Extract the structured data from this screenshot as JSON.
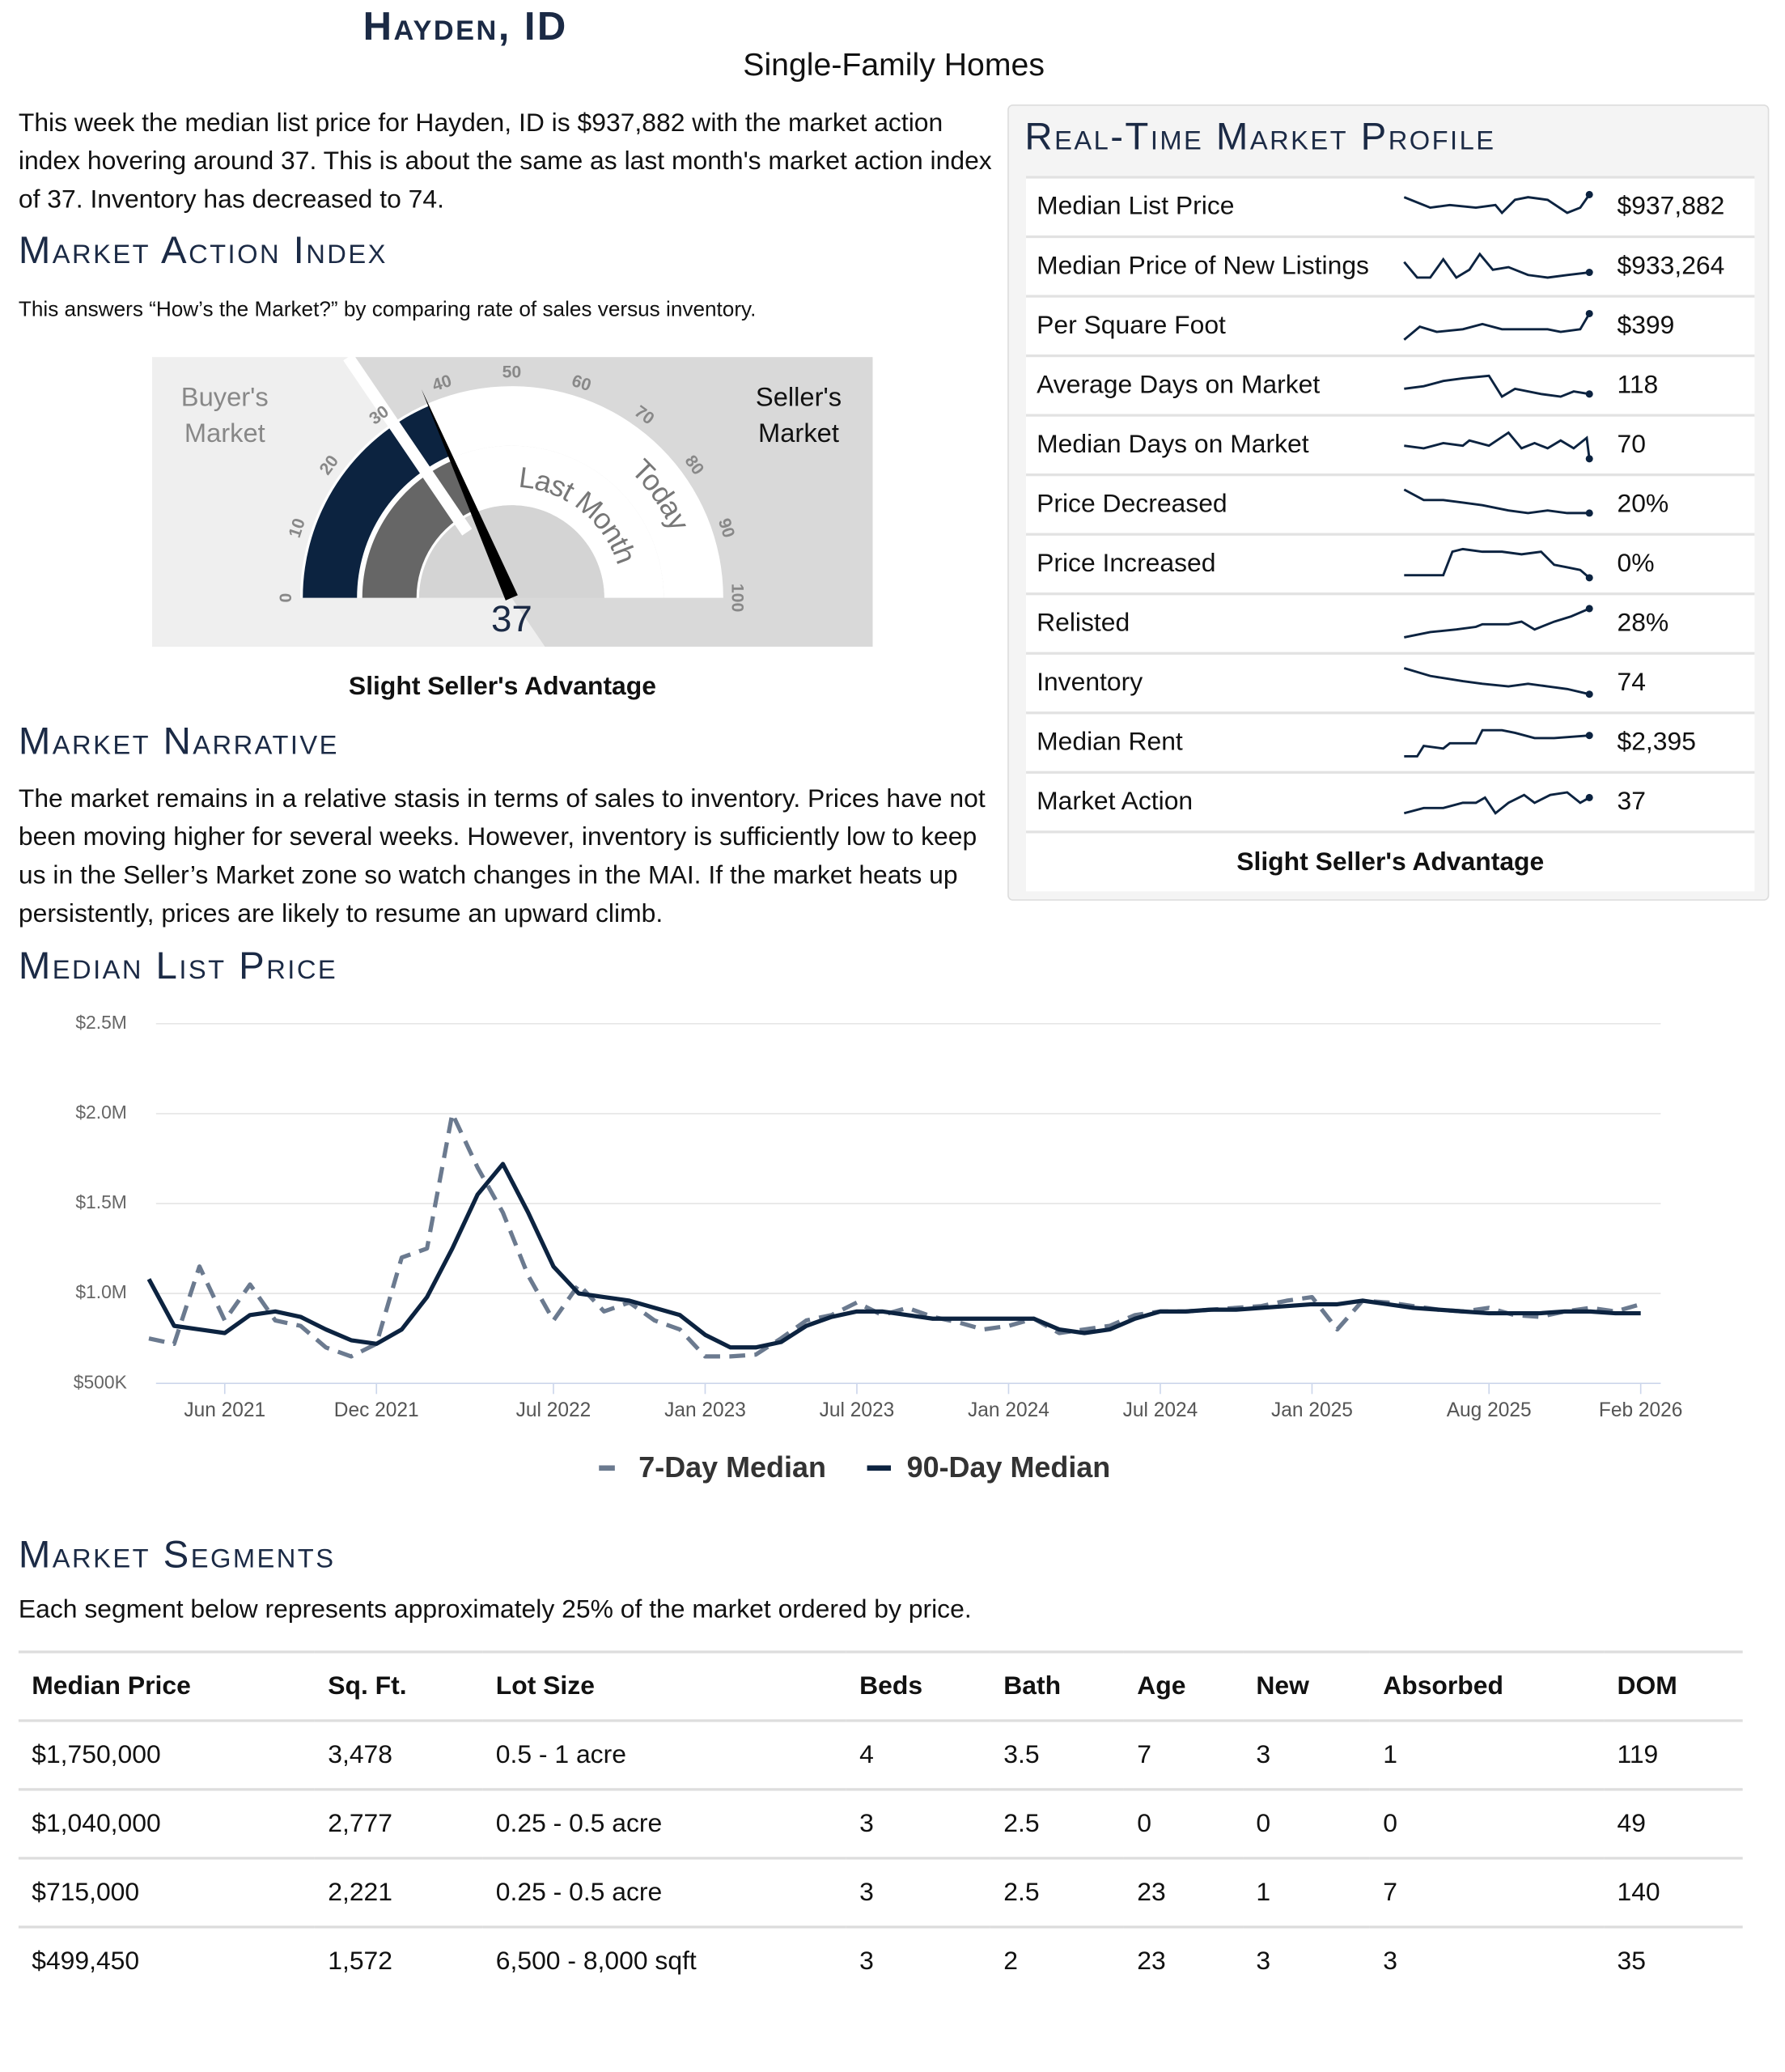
{
  "header": {
    "title": "Hayden, ID",
    "subtitle": "Single-Family Homes"
  },
  "intro": "This week the median list price for Hayden, ID is $937,882 with the market action index hovering around 37. This is about the same as last month's market action index of 37. Inventory has decreased to 74.",
  "market_action_index": {
    "heading": "Market Action Index",
    "description": "This answers “How’s the Market?” by comparing rate of sales versus inventory.",
    "gauge": {
      "range": [
        0,
        100
      ],
      "ticks": [
        0,
        10,
        20,
        30,
        40,
        50,
        60,
        70,
        80,
        90,
        100
      ],
      "value": 37,
      "last_month_value": 37,
      "threshold": 31,
      "buyer_label": "Buyer's Market",
      "seller_label": "Seller's Market",
      "last_month_label": "Last Month",
      "today_label": "Today"
    },
    "status": "Slight Seller's Advantage"
  },
  "narrative": {
    "heading": "Market Narrative",
    "text": "The market remains in a relative stasis in terms of sales to inventory. Prices have not been moving higher for several weeks. However, inventory is sufficiently low to keep us in the Seller’s Market zone so watch changes in the MAI. If the market heats up persistently, prices are likely to resume an upward climb."
  },
  "profile": {
    "heading": "Real-Time Market Profile",
    "rows": [
      {
        "label": "Median List Price",
        "value": "$937,882"
      },
      {
        "label": "Median Price of New Listings",
        "value": "$933,264"
      },
      {
        "label": "Per Square Foot",
        "value": "$399"
      },
      {
        "label": "Average Days on Market",
        "value": "118"
      },
      {
        "label": "Median Days on Market",
        "value": "70"
      },
      {
        "label": "Price Decreased",
        "value": "20%"
      },
      {
        "label": "Price Increased",
        "value": "0%"
      },
      {
        "label": "Relisted",
        "value": "28%"
      },
      {
        "label": "Inventory",
        "value": "74"
      },
      {
        "label": "Median Rent",
        "value": "$2,395"
      },
      {
        "label": "Market Action",
        "value": "37"
      }
    ],
    "status": "Slight Seller's Advantage"
  },
  "chart_data": {
    "type": "line",
    "title": "Median List Price",
    "x": [
      "2021-03",
      "2021-04",
      "2021-05",
      "2021-06",
      "2021-07",
      "2021-08",
      "2021-09",
      "2021-10",
      "2021-11",
      "2021-12",
      "2022-01",
      "2022-02",
      "2022-03",
      "2022-04",
      "2022-05",
      "2022-06",
      "2022-07",
      "2022-08",
      "2022-09",
      "2022-10",
      "2022-11",
      "2022-12",
      "2023-01",
      "2023-02",
      "2023-03",
      "2023-04",
      "2023-05",
      "2023-06",
      "2023-07",
      "2023-08",
      "2023-09",
      "2023-10",
      "2023-11",
      "2023-12",
      "2024-01",
      "2024-02",
      "2024-03",
      "2024-04",
      "2024-05",
      "2024-06",
      "2024-07",
      "2024-08",
      "2024-09",
      "2024-10",
      "2024-11",
      "2024-12",
      "2025-01",
      "2025-02",
      "2025-03",
      "2025-04",
      "2025-05",
      "2025-06",
      "2025-07",
      "2025-08",
      "2025-09",
      "2025-10",
      "2025-11",
      "2025-12",
      "2026-01",
      "2026-02"
    ],
    "xlim": [
      "2021-03",
      "2026-03"
    ],
    "xticks": [
      {
        "value": "2021-06",
        "label": "Jun 2021"
      },
      {
        "value": "2021-12",
        "label": "Dec 2021"
      },
      {
        "value": "2022-07",
        "label": "Jul 2022"
      },
      {
        "value": "2023-01",
        "label": "Jan 2023"
      },
      {
        "value": "2023-07",
        "label": "Jul 2023"
      },
      {
        "value": "2024-01",
        "label": "Jan 2024"
      },
      {
        "value": "2024-07",
        "label": "Jul 2024"
      },
      {
        "value": "2025-01",
        "label": "Jan 2025"
      },
      {
        "value": "2025-08",
        "label": "Aug 2025"
      },
      {
        "value": "2026-02",
        "label": "Feb 2026"
      }
    ],
    "ylim": [
      500000,
      2500000
    ],
    "yticks": [
      {
        "value": 500000,
        "label": "$500K"
      },
      {
        "value": 1000000,
        "label": "$1.0M"
      },
      {
        "value": 1500000,
        "label": "$1.5M"
      },
      {
        "value": 2000000,
        "label": "$2.0M"
      },
      {
        "value": 2500000,
        "label": "$2.5M"
      }
    ],
    "grid": true,
    "legend": "bottom",
    "series": [
      {
        "name": "7-Day Median",
        "color": "#6b7a8f",
        "dashed": true,
        "values": [
          750000,
          720000,
          1150000,
          850000,
          1050000,
          850000,
          820000,
          700000,
          650000,
          720000,
          1200000,
          1250000,
          2000000,
          1700000,
          1450000,
          1100000,
          850000,
          1050000,
          900000,
          950000,
          850000,
          800000,
          650000,
          650000,
          660000,
          750000,
          850000,
          880000,
          950000,
          880000,
          920000,
          870000,
          840000,
          800000,
          820000,
          860000,
          780000,
          800000,
          820000,
          880000,
          900000,
          900000,
          910000,
          920000,
          930000,
          960000,
          980000,
          800000,
          960000,
          950000,
          930000,
          910000,
          900000,
          920000,
          880000,
          870000,
          900000,
          920000,
          900000,
          940000
        ]
      },
      {
        "name": "90-Day Median",
        "color": "#0c2340",
        "dashed": false,
        "values": [
          1080000,
          820000,
          800000,
          780000,
          880000,
          900000,
          870000,
          800000,
          740000,
          720000,
          800000,
          980000,
          1250000,
          1550000,
          1720000,
          1450000,
          1150000,
          1000000,
          980000,
          960000,
          920000,
          880000,
          770000,
          700000,
          700000,
          730000,
          820000,
          870000,
          900000,
          900000,
          880000,
          860000,
          860000,
          860000,
          860000,
          860000,
          800000,
          780000,
          800000,
          860000,
          900000,
          900000,
          910000,
          910000,
          920000,
          930000,
          940000,
          940000,
          960000,
          940000,
          920000,
          910000,
          900000,
          890000,
          890000,
          890000,
          900000,
          900000,
          890000,
          890000
        ]
      }
    ]
  },
  "segments": {
    "heading": "Market Segments",
    "description": "Each segment below represents approximately 25% of the market ordered by price.",
    "table": {
      "columns": [
        "Median Price",
        "Sq. Ft.",
        "Lot Size",
        "Beds",
        "Bath",
        "Age",
        "New",
        "Absorbed",
        "DOM"
      ],
      "rows": [
        [
          "$1,750,000",
          "3,478",
          "0.5 - 1 acre",
          "4",
          "3.5",
          "7",
          "3",
          "1",
          "119"
        ],
        [
          "$1,040,000",
          "2,777",
          "0.25 - 0.5 acre",
          "3",
          "2.5",
          "0",
          "0",
          "0",
          "49"
        ],
        [
          "$715,000",
          "2,221",
          "0.25 - 0.5 acre",
          "3",
          "2.5",
          "23",
          "1",
          "7",
          "140"
        ],
        [
          "$499,450",
          "1,572",
          "6,500 - 8,000 sqft",
          "3",
          "2",
          "23",
          "3",
          "3",
          "35"
        ]
      ]
    }
  }
}
